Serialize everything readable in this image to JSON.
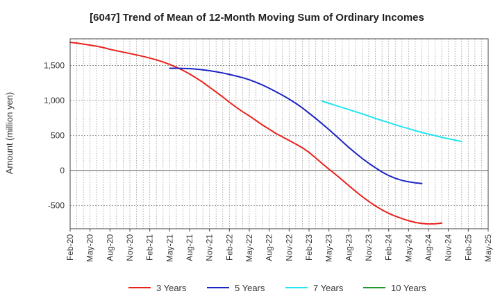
{
  "chart_data": {
    "type": "line",
    "title": "[6047]  Trend of Mean of 12-Month Moving Sum of Ordinary Incomes",
    "xlabel": "",
    "ylabel": "Amount (million yen)",
    "ylim": [
      -830,
      1880
    ],
    "yticks": [
      -500,
      0,
      500,
      1000,
      1500
    ],
    "ytick_labels": [
      "-500",
      "0",
      "500",
      "1,000",
      "1,500"
    ],
    "x_categories": [
      "Feb-20",
      "May-20",
      "Aug-20",
      "Nov-20",
      "Feb-21",
      "May-21",
      "Aug-21",
      "Nov-21",
      "Feb-22",
      "May-22",
      "Aug-22",
      "Nov-22",
      "Feb-23",
      "May-23",
      "Aug-23",
      "Nov-23",
      "Feb-24",
      "May-24",
      "Aug-24",
      "Nov-24",
      "Feb-25",
      "May-25"
    ],
    "grid": true,
    "legend_position": "bottom",
    "series": [
      {
        "name": "3 Years",
        "color": "#e8221b",
        "start_index": 0,
        "values": [
          1830,
          1820,
          1805,
          1790,
          1775,
          1755,
          1730,
          1710,
          1690,
          1670,
          1650,
          1630,
          1605,
          1580,
          1550,
          1515,
          1475,
          1430,
          1380,
          1320,
          1260,
          1190,
          1120,
          1050,
          975,
          905,
          840,
          780,
          715,
          650,
          590,
          530,
          480,
          430,
          380,
          325,
          260,
          180,
          100,
          20,
          -55,
          -135,
          -215,
          -295,
          -370,
          -440,
          -505,
          -560,
          -610,
          -650,
          -685,
          -715,
          -740,
          -755,
          -762,
          -760,
          -750
        ]
      },
      {
        "name": "5 Years",
        "color": "#1c24c4",
        "start_index": 15,
        "values": [
          1460,
          1460,
          1458,
          1455,
          1448,
          1438,
          1425,
          1410,
          1392,
          1372,
          1350,
          1325,
          1295,
          1260,
          1220,
          1175,
          1125,
          1075,
          1020,
          960,
          895,
          820,
          745,
          665,
          585,
          500,
          415,
          330,
          250,
          175,
          105,
          40,
          -20,
          -70,
          -110,
          -140,
          -160,
          -175,
          -185
        ]
      },
      {
        "name": "7 Years",
        "color": "#22e6f0",
        "start_index": 38,
        "values": [
          990,
          960,
          930,
          900,
          870,
          840,
          810,
          778,
          745,
          715,
          685,
          655,
          625,
          598,
          570,
          545,
          520,
          498,
          475,
          455,
          435,
          415
        ]
      },
      {
        "name": "10 Years",
        "color": "#22962f",
        "start_index": 0,
        "values": []
      }
    ]
  }
}
